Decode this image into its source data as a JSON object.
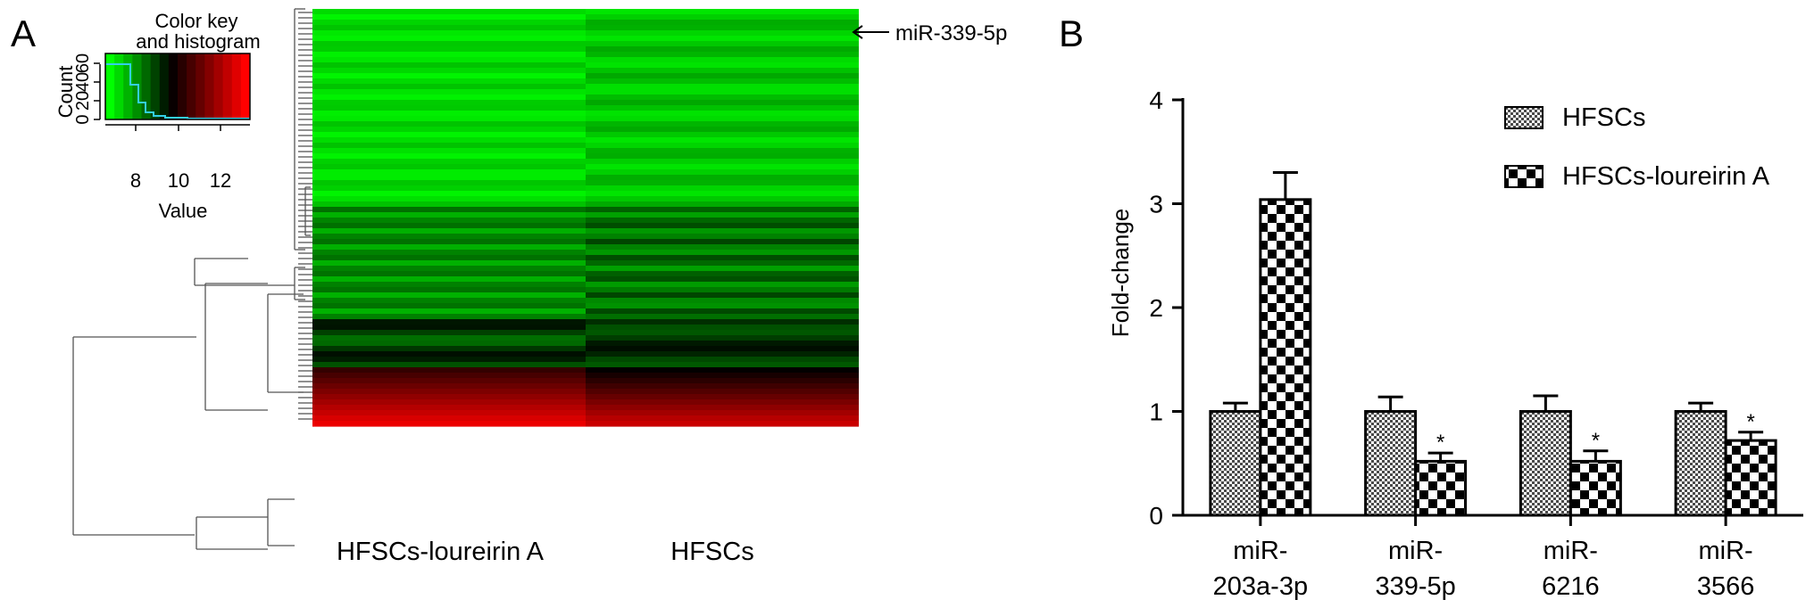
{
  "panel_a": {
    "label": "A",
    "color_key": {
      "title_line1": "Color key",
      "title_line2": "and histogram",
      "ylabel": "Count",
      "xlabel": "Value",
      "y_ticks": [
        "0",
        "20",
        "40",
        "60"
      ],
      "x_ticks": [
        "8",
        "10",
        "12"
      ],
      "colors": [
        "#00ff00",
        "#000000",
        "#ff0000"
      ]
    },
    "annotation": "miR-339-5p",
    "columns": [
      "HFSCs-loureirin A",
      "HFSCs"
    ],
    "colors": {
      "low": "#00ff00",
      "mid": "#000000",
      "high": "#ff0000"
    }
  },
  "panel_b": {
    "label": "B"
  },
  "chart_data": {
    "type": "bar",
    "ylabel": "Fold-change",
    "xlabel": "",
    "ylim": [
      0,
      4
    ],
    "y_ticks": [
      "0",
      "1",
      "2",
      "3",
      "4"
    ],
    "categories": [
      "miR-\n203a-3p",
      "miR-\n339-5p",
      "miR-\n6216",
      "miR-\n3566"
    ],
    "category_lines": [
      [
        "miR-",
        "203a-3p"
      ],
      [
        "miR-",
        "339-5p"
      ],
      [
        "miR-",
        "6216"
      ],
      [
        "miR-",
        "3566"
      ]
    ],
    "series": [
      {
        "name": "HFSCs",
        "values": [
          1.0,
          1.0,
          1.0,
          1.0
        ],
        "errors": [
          0.08,
          0.14,
          0.15,
          0.08
        ],
        "pattern": "fine-checker"
      },
      {
        "name": "HFSCs-loureirin A",
        "values": [
          3.04,
          0.52,
          0.52,
          0.72
        ],
        "errors": [
          0.26,
          0.08,
          0.1,
          0.08
        ],
        "pattern": "coarse-checker"
      }
    ],
    "significance_marker": "*",
    "significant": [
      false,
      true,
      true,
      true
    ],
    "legend_position": "top-right",
    "grid": false
  }
}
